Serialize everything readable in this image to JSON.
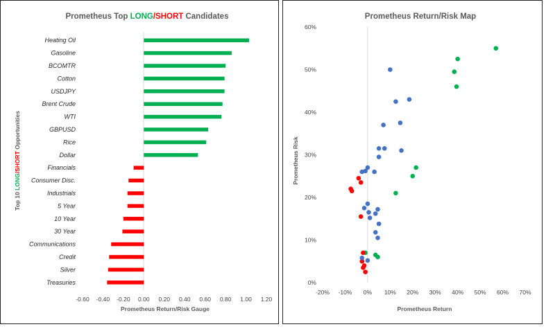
{
  "colors": {
    "long": "#00b050",
    "short": "#ff0000",
    "neutral": "#4472c4",
    "text": "#595959"
  },
  "chart_data": [
    {
      "type": "bar",
      "orientation": "horizontal",
      "title_parts": [
        "Prometheus Top ",
        "LONG",
        "/",
        "SHORT",
        " Candidates"
      ],
      "ylabel_parts": [
        "Top 10  ",
        "LONG",
        "/",
        "SHORT",
        " Opportunities"
      ],
      "xlabel": "Prometheus Return/Risk Gauge",
      "xlim": [
        -0.6,
        1.2
      ],
      "xticks": [
        "-0.60",
        "-0.40",
        "-0.20",
        "0.00",
        "0.20",
        "0.40",
        "0.60",
        "0.80",
        "1.00",
        "1.20"
      ],
      "categories": [
        "Heating Oil",
        "Gasoline",
        "BCOMTR",
        "Cotton",
        "USDJPY",
        "Brent Crude",
        "WTI",
        "GBPUSD",
        "Rice",
        "Dollar",
        "Financials",
        "Consumer Disc.",
        "Industrials",
        "5 Year",
        "10 Year",
        "30 Year",
        "Communications",
        "Credit",
        "Silver",
        "Treasuries"
      ],
      "values": [
        1.03,
        0.86,
        0.8,
        0.79,
        0.79,
        0.77,
        0.76,
        0.63,
        0.61,
        0.53,
        -0.1,
        -0.15,
        -0.16,
        -0.16,
        -0.2,
        -0.21,
        -0.32,
        -0.34,
        -0.35,
        -0.36
      ]
    },
    {
      "type": "scatter",
      "title": "Prometheus Return/Risk Map",
      "xlabel": "Prometheus Return",
      "ylabel": "Prometheus Risk",
      "xlim": [
        -0.2,
        0.7
      ],
      "ylim": [
        0,
        0.6
      ],
      "xticks": [
        "-20%",
        "-10%",
        "0%",
        "10%",
        "20%",
        "30%",
        "40%",
        "50%",
        "60%",
        "70%"
      ],
      "yticks": [
        "0%",
        "10%",
        "20%",
        "30%",
        "40%",
        "50%",
        "60%"
      ],
      "series": [
        {
          "color": "green",
          "points": [
            [
              0.57,
              0.55
            ],
            [
              0.4,
              0.525
            ],
            [
              0.385,
              0.495
            ],
            [
              0.395,
              0.46
            ],
            [
              0.215,
              0.27
            ],
            [
              0.2,
              0.25
            ],
            [
              0.125,
              0.21
            ],
            [
              0.035,
              0.065
            ],
            [
              0.045,
              0.06
            ],
            [
              -0.01,
              0.07
            ]
          ]
        },
        {
          "color": "red",
          "points": [
            [
              -0.04,
              0.245
            ],
            [
              -0.03,
              0.235
            ],
            [
              -0.075,
              0.22
            ],
            [
              -0.07,
              0.215
            ],
            [
              -0.03,
              0.155
            ],
            [
              -0.02,
              0.07
            ],
            [
              -0.025,
              0.05
            ],
            [
              -0.015,
              0.04
            ],
            [
              -0.02,
              0.035
            ],
            [
              -0.01,
              0.025
            ]
          ]
        },
        {
          "color": "blue",
          "points": [
            [
              0.1,
              0.5
            ],
            [
              0.185,
              0.43
            ],
            [
              0.125,
              0.425
            ],
            [
              0.145,
              0.375
            ],
            [
              0.07,
              0.37
            ],
            [
              0.05,
              0.315
            ],
            [
              0.075,
              0.315
            ],
            [
              0.15,
              0.31
            ],
            [
              0.05,
              0.295
            ],
            [
              0.0,
              0.27
            ],
            [
              -0.025,
              0.26
            ],
            [
              -0.01,
              0.262
            ],
            [
              0.03,
              0.26
            ],
            [
              0.0,
              0.185
            ],
            [
              -0.015,
              0.175
            ],
            [
              0.045,
              0.172
            ],
            [
              0.005,
              0.165
            ],
            [
              0.035,
              0.162
            ],
            [
              0.01,
              0.152
            ],
            [
              0.05,
              0.138
            ],
            [
              0.035,
              0.118
            ],
            [
              0.045,
              0.105
            ],
            [
              -0.025,
              0.058
            ],
            [
              0.0,
              0.052
            ]
          ]
        }
      ]
    }
  ]
}
